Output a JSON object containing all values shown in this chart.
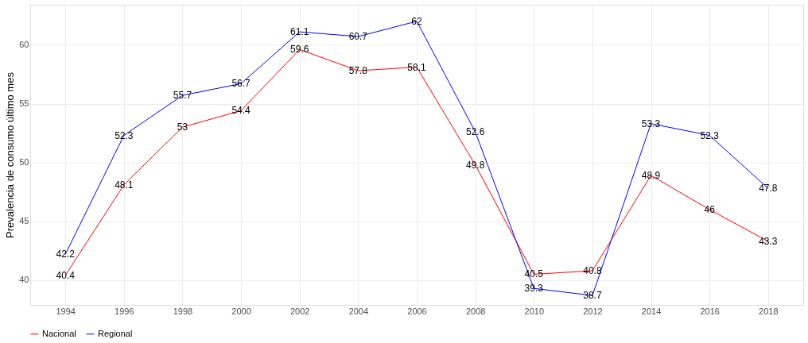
{
  "chart_data": {
    "type": "line",
    "ylabel": "Prevalencia de consumo último mes",
    "x": [
      1994,
      1996,
      1998,
      2000,
      2002,
      2004,
      2006,
      2008,
      2010,
      2012,
      2014,
      2016,
      2018
    ],
    "series": [
      {
        "name": "Nacional",
        "color": "#ff0000",
        "values": [
          40.4,
          48.1,
          53,
          54.4,
          59.6,
          57.8,
          58.1,
          49.8,
          40.5,
          40.8,
          48.9,
          46,
          43.3
        ]
      },
      {
        "name": "Regional",
        "color": "#0000ff",
        "values": [
          42.2,
          52.3,
          55.7,
          56.7,
          61.1,
          60.7,
          62,
          52.6,
          39.3,
          38.7,
          53.3,
          52.3,
          47.8
        ]
      }
    ],
    "xlim": [
      1992.8,
      2019.2
    ],
    "xticks": [
      1994,
      1996,
      1998,
      2000,
      2002,
      2004,
      2006,
      2008,
      2010,
      2012,
      2014,
      2016,
      2018
    ],
    "ylim": [
      37.9,
      63.4
    ],
    "yticks": [
      40,
      45,
      50,
      55,
      60
    ],
    "grid": true,
    "legend": "bottom",
    "data_labels": true,
    "marker": "none",
    "line_style": "solid"
  }
}
